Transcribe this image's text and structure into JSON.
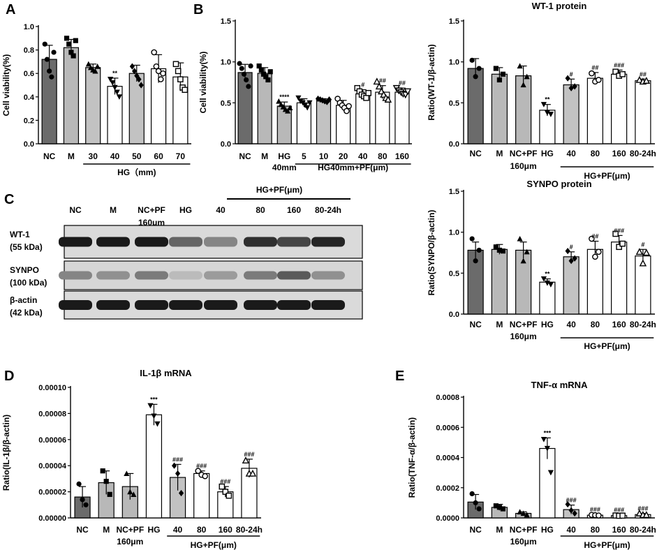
{
  "chart_data": [
    {
      "id": "A",
      "type": "bar",
      "panel_letter": "A",
      "title": "",
      "ylabel": "Cell viability(%)",
      "ylim": [
        0,
        1.0
      ],
      "yticks": [
        "0.0",
        "0.2",
        "0.4",
        "0.6",
        "0.8",
        "1.0"
      ],
      "categories": [
        "NC",
        "M",
        "30",
        "40",
        "50",
        "60",
        "70"
      ],
      "values": [
        0.72,
        0.82,
        0.65,
        0.49,
        0.6,
        0.64,
        0.57
      ],
      "errors": [
        0.12,
        0.07,
        0.03,
        0.07,
        0.07,
        0.12,
        0.12
      ],
      "points": [
        [
          0.85,
          0.72,
          0.62,
          0.57,
          0.78
        ],
        [
          0.9,
          0.85,
          0.78,
          0.75,
          0.88
        ],
        [
          0.68,
          0.65,
          0.63,
          0.62,
          0.66
        ],
        [
          0.55,
          0.52,
          0.48,
          0.44,
          0.4
        ],
        [
          0.66,
          0.62,
          0.58,
          0.55,
          0.5
        ],
        [
          0.78,
          0.66,
          0.62,
          0.55,
          0.6
        ],
        [
          0.68,
          0.62,
          0.55,
          0.48,
          0.46
        ]
      ],
      "markers": [
        "circle",
        "square",
        "triangle",
        "triangle-down",
        "diamond",
        "circle-open",
        "square-open"
      ],
      "fills": [
        "#6b6b6b",
        "#b8b8b8",
        "#c2c2c2",
        "#ffffff",
        "#c2c2c2",
        "#ffffff",
        "#ffffff"
      ],
      "significance": [
        "",
        "",
        "",
        "**",
        "",
        "",
        ""
      ],
      "groups": [
        {
          "label": "HG（mm)",
          "from": 2,
          "to": 6
        }
      ]
    },
    {
      "id": "B",
      "type": "bar",
      "panel_letter": "B",
      "title": "",
      "ylabel": "Cell viability(%)",
      "ylim": [
        0,
        1.5
      ],
      "yticks": [
        "0.0",
        "0.5",
        "1.0",
        "1.5"
      ],
      "categories": [
        "NC",
        "M",
        "HG",
        "5",
        "10",
        "20",
        "40",
        "80",
        "160"
      ],
      "values": [
        0.87,
        0.86,
        0.46,
        0.5,
        0.53,
        0.47,
        0.61,
        0.63,
        0.63
      ],
      "errors": [
        0.1,
        0.07,
        0.05,
        0.05,
        0.02,
        0.06,
        0.05,
        0.08,
        0.05
      ],
      "points": [
        [
          0.98,
          0.92,
          0.85,
          0.78,
          0.7,
          0.95
        ],
        [
          0.95,
          0.9,
          0.85,
          0.82,
          0.78,
          0.88
        ],
        [
          0.52,
          0.48,
          0.45,
          0.42,
          0.4,
          0.44
        ],
        [
          0.56,
          0.52,
          0.5,
          0.47,
          0.44,
          0.5
        ],
        [
          0.55,
          0.54,
          0.53,
          0.52,
          0.51,
          0.54
        ],
        [
          0.55,
          0.5,
          0.47,
          0.44,
          0.4,
          0.46
        ],
        [
          0.68,
          0.64,
          0.6,
          0.58,
          0.56,
          0.62
        ],
        [
          0.76,
          0.7,
          0.64,
          0.6,
          0.56,
          0.54
        ],
        [
          0.68,
          0.65,
          0.63,
          0.61,
          0.6,
          0.64
        ]
      ],
      "markers": [
        "circle",
        "square",
        "triangle",
        "triangle-down",
        "diamond",
        "circle-open",
        "square-open",
        "triangle-open",
        "triangle-down-open"
      ],
      "fills": [
        "#6b6b6b",
        "#b8b8b8",
        "#b8b8b8",
        "#ffffff",
        "#c2c2c2",
        "#ffffff",
        "#ffffff",
        "#ffffff",
        "#ffffff"
      ],
      "significance": [
        "",
        "",
        "****",
        "",
        "",
        "",
        "#",
        "##",
        "##"
      ],
      "sublabels": [
        {
          "text": "40mm",
          "at": 2
        }
      ],
      "groups": [
        {
          "label": "HG40mm+PF(μm)",
          "from": 3,
          "to": 8
        }
      ]
    },
    {
      "id": "WT1",
      "type": "bar",
      "panel_letter": "",
      "title": "WT-1 protein",
      "ylabel": "Ratio(WT-1/β-actin)",
      "ylim": [
        0,
        1.5
      ],
      "yticks": [
        "0.0",
        "0.5",
        "1.0",
        "1.5"
      ],
      "categories": [
        "NC",
        "M",
        "NC+PF",
        "HG",
        "40",
        "80",
        "160",
        "80-24h"
      ],
      "values": [
        0.92,
        0.85,
        0.83,
        0.41,
        0.72,
        0.8,
        0.85,
        0.77
      ],
      "errors": [
        0.12,
        0.08,
        0.12,
        0.07,
        0.07,
        0.07,
        0.05,
        0.02
      ],
      "points": [
        [
          1.02,
          0.82,
          0.92
        ],
        [
          0.92,
          0.78,
          0.85
        ],
        [
          0.95,
          0.72,
          0.82
        ],
        [
          0.48,
          0.38,
          0.36
        ],
        [
          0.8,
          0.68,
          0.7
        ],
        [
          0.86,
          0.76,
          0.78
        ],
        [
          0.88,
          0.83,
          0.85
        ],
        [
          0.78,
          0.76,
          0.77
        ]
      ],
      "markers": [
        "circle",
        "square",
        "triangle",
        "triangle-down",
        "diamond",
        "circle-open",
        "square-open",
        "triangle-open"
      ],
      "fills": [
        "#6b6b6b",
        "#b8b8b8",
        "#b8b8b8",
        "#ffffff",
        "#c2c2c2",
        "#ffffff",
        "#ffffff",
        "#ffffff"
      ],
      "significance": [
        "",
        "",
        "",
        "**",
        "#",
        "##",
        "###",
        "##"
      ],
      "sublabels": [
        {
          "text": "160μm",
          "at": 2
        }
      ],
      "groups": [
        {
          "label": "HG+PF(μm)",
          "from": 4,
          "to": 7
        }
      ]
    },
    {
      "id": "SYNPO",
      "type": "bar",
      "panel_letter": "",
      "title": "SYNPO protein",
      "ylabel": "Ratio(SYNPO/β-actin)",
      "ylim": [
        0,
        1.5
      ],
      "yticks": [
        "0.0",
        "0.5",
        "1.0",
        "1.5"
      ],
      "categories": [
        "NC",
        "M",
        "NC+PF",
        "HG",
        "40",
        "80",
        "160",
        "80-24h"
      ],
      "values": [
        0.78,
        0.79,
        0.78,
        0.39,
        0.7,
        0.79,
        0.88,
        0.71
      ],
      "errors": [
        0.1,
        0.06,
        0.1,
        0.04,
        0.06,
        0.1,
        0.08,
        0.08
      ],
      "points": [
        [
          0.92,
          0.65,
          0.78
        ],
        [
          0.82,
          0.78,
          0.77
        ],
        [
          0.92,
          0.65,
          0.76
        ],
        [
          0.43,
          0.38,
          0.36
        ],
        [
          0.77,
          0.65,
          0.68
        ],
        [
          0.92,
          0.7,
          0.76
        ],
        [
          0.98,
          0.82,
          0.86
        ],
        [
          0.76,
          0.62,
          0.75
        ]
      ],
      "markers": [
        "circle",
        "square",
        "triangle",
        "triangle-down",
        "diamond",
        "circle-open",
        "square-open",
        "triangle-open"
      ],
      "fills": [
        "#6b6b6b",
        "#b8b8b8",
        "#b8b8b8",
        "#ffffff",
        "#c2c2c2",
        "#ffffff",
        "#ffffff",
        "#ffffff"
      ],
      "significance": [
        "",
        "",
        "",
        "**",
        "#",
        "##",
        "###",
        "#"
      ],
      "sublabels": [
        {
          "text": "160μm",
          "at": 2
        }
      ],
      "groups": [
        {
          "label": "HG+PF(μm)",
          "from": 4,
          "to": 7
        }
      ]
    },
    {
      "id": "D",
      "type": "bar",
      "panel_letter": "D",
      "title": "IL-1β mRNA",
      "ylabel": "Ratio(IL-1β/β-actin)",
      "ylim": [
        0,
        0.0001
      ],
      "yticks": [
        "0.00000",
        "0.00002",
        "0.00004",
        "0.00006",
        "0.00008",
        "0.00010"
      ],
      "categories": [
        "NC",
        "M",
        "NC+PF",
        "HG",
        "40",
        "80",
        "160",
        "80-24h"
      ],
      "values": [
        1.6e-05,
        2.7e-05,
        2.4e-05,
        7.9e-05,
        3.1e-05,
        3.4e-05,
        2e-05,
        3.8e-05
      ],
      "errors": [
        8e-06,
        9e-06,
        1e-05,
        8e-06,
        1e-05,
        2e-06,
        4e-06,
        7e-06
      ],
      "points": [
        [
          2.6e-05,
          1.4e-05,
          1e-05
        ],
        [
          3.6e-05,
          2.8e-05,
          1.8e-05
        ],
        [
          3.4e-05,
          2e-05,
          1.8e-05
        ],
        [
          8.6e-05,
          7.8e-05,
          7.2e-05
        ],
        [
          4e-05,
          3.4e-05,
          1.9e-05
        ],
        [
          3.6e-05,
          3.3e-05,
          3.2e-05
        ],
        [
          2.4e-05,
          2e-05,
          1.7e-05
        ],
        [
          4.4e-05,
          3.4e-05,
          3.4e-05
        ]
      ],
      "markers": [
        "circle",
        "square",
        "triangle",
        "triangle-down",
        "diamond",
        "circle-open",
        "square-open",
        "triangle-open"
      ],
      "fills": [
        "#6b6b6b",
        "#b8b8b8",
        "#b8b8b8",
        "#ffffff",
        "#c2c2c2",
        "#ffffff",
        "#ffffff",
        "#ffffff"
      ],
      "significance": [
        "",
        "",
        "",
        "***",
        "###",
        "###",
        "###",
        "###"
      ],
      "sublabels": [
        {
          "text": "160μm",
          "at": 2
        }
      ],
      "groups": [
        {
          "label": "HG+PF(μm)",
          "from": 4,
          "to": 7
        }
      ]
    },
    {
      "id": "E",
      "type": "bar",
      "panel_letter": "E",
      "title": "TNF-α mRNA",
      "ylabel": "Ratio(TNF-α/β-actin)",
      "ylim": [
        0,
        0.0008
      ],
      "yticks": [
        "0.0000",
        "0.0002",
        "0.0004",
        "0.0006",
        "0.0008"
      ],
      "categories": [
        "NC",
        "M",
        "NC+PF",
        "HG",
        "40",
        "80",
        "160",
        "80-24h"
      ],
      "values": [
        0.000105,
        7e-05,
        3e-05,
        0.00046,
        5.5e-05,
        1.8e-05,
        1.5e-05,
        2.2e-05
      ],
      "errors": [
        5e-05,
        2e-05,
        1e-05,
        7e-05,
        3e-05,
        5e-06,
        5e-06,
        8e-06
      ],
      "points": [
        [
          0.00016,
          0.0001,
          6e-05
        ],
        [
          8e-05,
          7e-05,
          6e-05
        ],
        [
          4e-05,
          3e-05,
          2e-05
        ],
        [
          0.00052,
          0.00046,
          0.0003
        ],
        [
          9e-05,
          5e-05,
          3e-05
        ],
        [
          2e-05,
          1.8e-05,
          1.6e-05
        ],
        [
          1.6e-05,
          1.4e-05,
          1.5e-05
        ],
        [
          3e-05,
          2e-05,
          2e-05
        ]
      ],
      "markers": [
        "circle",
        "square",
        "triangle",
        "triangle-down",
        "diamond",
        "circle-open",
        "square-open",
        "triangle-open"
      ],
      "fills": [
        "#6b6b6b",
        "#b8b8b8",
        "#b8b8b8",
        "#ffffff",
        "#c2c2c2",
        "#ffffff",
        "#ffffff",
        "#ffffff"
      ],
      "significance": [
        "",
        "",
        "",
        "***",
        "###",
        "###",
        "###",
        "###"
      ],
      "sublabels": [
        {
          "text": "160μm",
          "at": 2
        }
      ],
      "groups": [
        {
          "label": "HG+PF(μm)",
          "from": 4,
          "to": 7
        }
      ]
    }
  ],
  "blot": {
    "panel_letter": "C",
    "group_label": "HG+PF(μm)",
    "lanes": [
      "NC",
      "M",
      "NC+PF",
      "HG",
      "40",
      "80",
      "160",
      "80-24h"
    ],
    "lane_sublabel": "160μm",
    "rows": [
      {
        "label1": "WT-1",
        "label2": "(55 kDa)",
        "intensity": [
          0.95,
          0.95,
          0.95,
          0.6,
          0.45,
          0.85,
          0.75,
          0.9
        ]
      },
      {
        "label1": "SYNPO",
        "label2": "(100 kDa)",
        "intensity": [
          0.45,
          0.4,
          0.5,
          0.2,
          0.35,
          0.5,
          0.65,
          0.4
        ]
      },
      {
        "label1": "β-actin",
        "label2": "(42 kDa)",
        "intensity": [
          0.95,
          0.95,
          0.95,
          0.95,
          0.95,
          0.95,
          0.95,
          0.95
        ]
      }
    ]
  }
}
